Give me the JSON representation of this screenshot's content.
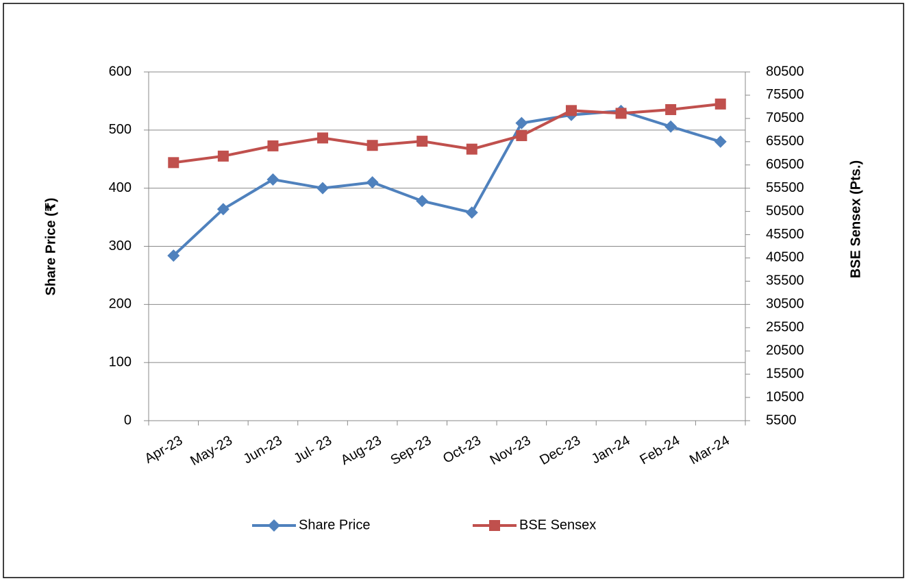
{
  "chart_data": {
    "type": "line",
    "categories": [
      "Apr-23",
      "May-23",
      "Jun-23",
      "Jul- 23",
      "Aug-23",
      "Sep-23",
      "Oct-23",
      "Nov-23",
      "Dec-23",
      "Jan-24",
      "Feb-24",
      "Mar-24"
    ],
    "y_label": "Share Price (₹)",
    "y2_label": "BSE Sensex (Pts.)",
    "series": [
      {
        "name": "Share Price",
        "color": "#4f81bd",
        "marker": "diamond",
        "values": [
          284,
          364,
          415,
          400,
          410,
          378,
          358,
          512,
          526,
          533,
          506,
          480
        ]
      },
      {
        "name": "BSE Sensex",
        "color": "#c0504d",
        "marker": "square",
        "axis": "y2",
        "values": [
          61000,
          62400,
          64600,
          66300,
          64700,
          65600,
          63900,
          66800,
          72200,
          71600,
          72400,
          73600
        ]
      }
    ],
    "ylim": [
      0,
      600
    ],
    "yticks": [
      0,
      100,
      200,
      300,
      400,
      500,
      600
    ],
    "y2lim": [
      5500,
      80500
    ],
    "y2ticks": [
      5500,
      10500,
      15500,
      20500,
      25500,
      30500,
      35500,
      40500,
      45500,
      50500,
      55500,
      60500,
      65500,
      70500,
      75500,
      80500
    ],
    "grid": true,
    "legend": "bottom"
  }
}
